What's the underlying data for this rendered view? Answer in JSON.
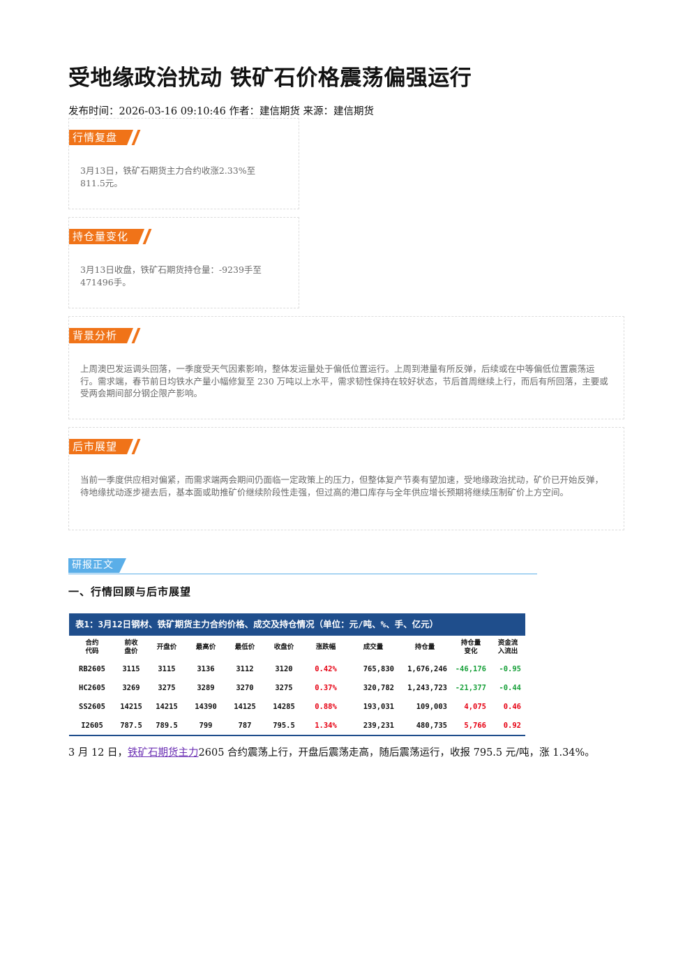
{
  "article": {
    "title": "受地缘政治扰动 铁矿石价格震荡偏强运行",
    "meta": "发布时间：2026-03-16 09:10:46 作者：建信期货 来源：建信期货"
  },
  "boxes": {
    "review": {
      "tag": "行情复盘",
      "text": "3月13日，铁矿石期货主力合约收涨2.33%至811.5元。"
    },
    "position": {
      "tag": "持仓量变化",
      "text": "3月13日收盘，铁矿石期货持仓量：-9239手至471496手。"
    },
    "background": {
      "tag": "背景分析",
      "text": "上周澳巴发运调头回落，一季度受天气因素影响，整体发运量处于偏低位置运行。上周到港量有所反弹，后续或在中等偏低位置震荡运行。需求端，春节前日均铁水产量小幅修复至 230 万吨以上水平，需求韧性保持在较好状态，节后首周继续上行，而后有所回落，主要或受两会期间部分钢企限产影响。"
    },
    "outlook": {
      "tag": "后市展望",
      "text": "当前一季度供应相对偏紧，而需求端两会期间仍面临一定政策上的压力，但整体复产节奏有望加速，受地缘政治扰动，矿价已开始反弹，待地缘扰动逐步褪去后，基本面或助推矿价继续阶段性走强，但过高的港口库存与全年供应增长预期将继续压制矿价上方空间。"
    }
  },
  "report": {
    "section_tag": "研报正文",
    "heading": "一、行情回顾与后市展望"
  },
  "table": {
    "caption": "表1：3月12日钢材、铁矿期货主力合约价格、成交及持仓情况（单位：元/吨、%、手、亿元）",
    "headers": [
      "合约\n代码",
      "前收\n盘价",
      "开盘价",
      "最高价",
      "最低价",
      "收盘价",
      "涨跌幅",
      "成交量",
      "持仓量",
      "持仓量\n变化",
      "资金流\n入流出"
    ],
    "rows": [
      [
        "RB2605",
        "3115",
        "3115",
        "3136",
        "3112",
        "3120",
        "0.42%",
        "765,830",
        "1,676,246",
        "-46,176",
        "-0.95"
      ],
      [
        "HC2605",
        "3269",
        "3275",
        "3289",
        "3270",
        "3275",
        "0.37%",
        "320,782",
        "1,243,723",
        "-21,377",
        "-0.44"
      ],
      [
        "SS2605",
        "14215",
        "14215",
        "14390",
        "14125",
        "14285",
        "0.88%",
        "193,031",
        "109,003",
        "4,075",
        "0.46"
      ],
      [
        "I2605",
        "787.5",
        "789.5",
        "799",
        "787",
        "795.5",
        "1.34%",
        "239,231",
        "480,735",
        "5,766",
        "0.92"
      ]
    ]
  },
  "paragraph": {
    "prefix": "3 月 12 日，",
    "link": "铁矿石期货主力",
    "suffix": "2605 合约震荡上行，开盘后震荡走高，随后震荡运行，收报 795.5 元/吨，涨 1.34%。"
  },
  "colors": {
    "tag_orange": "#f07318",
    "section_blue": "#5aaee8",
    "table_navy": "#1f4e8c",
    "up_red": "#e60012",
    "down_green": "#18a03a"
  }
}
